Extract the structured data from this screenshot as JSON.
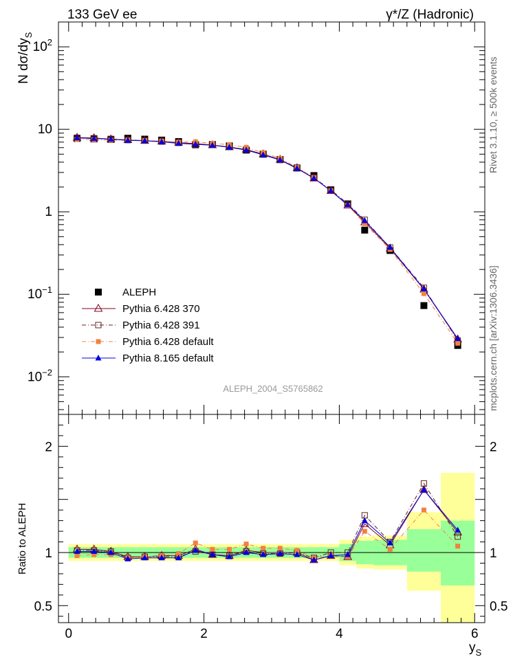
{
  "header": {
    "left_label": "133 GeV ee",
    "right_label": "γ*/Z (Hadronic)"
  },
  "side_text": {
    "rivet": "Rivet 3.1.10, ≥ 500k events",
    "mcplots": "mcplots.cern.ch [arXiv:1306.3436]"
  },
  "watermark": "ALEPH_2004_S5765862",
  "chart_data": [
    {
      "type": "line",
      "panel": "main",
      "y_scale": "log",
      "ylabel": "N dσ/dy_S",
      "ylabel_main": "N dσ/dy",
      "ylabel_sub": "S",
      "xlabel": "y_S",
      "xlabel_main": "y",
      "xlabel_sub": "S",
      "xlim": [
        -0.15,
        6.15
      ],
      "ylim": [
        0.0035,
        200
      ],
      "yticks": [
        {
          "value": 0.01,
          "base": "10",
          "exp": "−2"
        },
        {
          "value": 0.1,
          "base": "10",
          "exp": "−1"
        },
        {
          "value": 1,
          "base": "1",
          "exp": ""
        },
        {
          "value": 10,
          "base": "10",
          "exp": ""
        },
        {
          "value": 100,
          "base": "10",
          "exp": "2"
        }
      ],
      "x": [
        0.125,
        0.375,
        0.625,
        0.875,
        1.125,
        1.375,
        1.625,
        1.875,
        2.125,
        2.375,
        2.625,
        2.875,
        3.125,
        3.375,
        3.625,
        3.875,
        4.125,
        4.375,
        4.75,
        5.25,
        5.75
      ],
      "series": [
        {
          "name": "ALEPH",
          "color": "#000000",
          "marker": "filled-square",
          "line": "none",
          "values": [
            7.75,
            7.65,
            7.55,
            7.8,
            7.6,
            7.4,
            7.1,
            6.5,
            6.55,
            6.3,
            5.6,
            5.0,
            4.3,
            3.4,
            2.75,
            1.85,
            1.25,
            0.6,
            0.34,
            0.073,
            0.024
          ]
        },
        {
          "name": "Pythia 6.428 370",
          "color": "#800020",
          "marker": "open-triangle",
          "line": "solid",
          "values": [
            7.95,
            7.85,
            7.6,
            7.45,
            7.3,
            7.15,
            6.9,
            6.7,
            6.45,
            6.1,
            5.7,
            5.0,
            4.3,
            3.4,
            2.55,
            1.8,
            1.2,
            0.75,
            0.36,
            0.115,
            0.0285
          ]
        },
        {
          "name": "Pythia 6.428 391",
          "color": "#602020",
          "marker": "open-square",
          "line": "dashdot",
          "values": [
            7.9,
            7.8,
            7.65,
            7.4,
            7.3,
            7.1,
            6.85,
            6.55,
            6.45,
            6.1,
            5.65,
            4.95,
            4.25,
            3.4,
            2.6,
            1.85,
            1.25,
            0.8,
            0.37,
            0.12,
            0.0275
          ]
        },
        {
          "name": "Pythia 6.428 default",
          "color": "#f28040",
          "marker": "filled-square-small",
          "line": "dashdot",
          "values": [
            7.5,
            7.5,
            7.4,
            7.4,
            7.3,
            7.2,
            7.0,
            7.05,
            6.75,
            6.5,
            6.05,
            5.2,
            4.45,
            3.45,
            2.6,
            1.8,
            1.2,
            0.72,
            0.35,
            0.102,
            0.0255
          ]
        },
        {
          "name": "Pythia 8.165 default",
          "color": "#0000e0",
          "marker": "filled-triangle",
          "line": "solid",
          "values": [
            7.85,
            7.75,
            7.6,
            7.35,
            7.25,
            7.05,
            6.75,
            6.6,
            6.4,
            6.05,
            5.6,
            4.9,
            4.25,
            3.35,
            2.55,
            1.8,
            1.22,
            0.78,
            0.37,
            0.116,
            0.029
          ]
        }
      ],
      "legend": {
        "placement": "lower-left"
      }
    },
    {
      "type": "line",
      "panel": "ratio",
      "ylabel": "Ratio to ALEPH",
      "xlim": [
        -0.15,
        6.15
      ],
      "ylim": [
        0.34,
        2.3
      ],
      "yticks": [
        0.5,
        1,
        2
      ],
      "xticks": [
        0,
        2,
        4,
        6
      ],
      "bins": [
        [
          0.0,
          0.25
        ],
        [
          0.25,
          0.5
        ],
        [
          0.5,
          0.75
        ],
        [
          0.75,
          1.0
        ],
        [
          1.0,
          1.25
        ],
        [
          1.25,
          1.5
        ],
        [
          1.5,
          1.75
        ],
        [
          1.75,
          2.0
        ],
        [
          2.0,
          2.25
        ],
        [
          2.25,
          2.5
        ],
        [
          2.5,
          2.75
        ],
        [
          2.75,
          3.0
        ],
        [
          3.0,
          3.25
        ],
        [
          3.25,
          3.5
        ],
        [
          3.5,
          3.75
        ],
        [
          3.75,
          4.0
        ],
        [
          4.0,
          4.25
        ],
        [
          4.25,
          4.5
        ],
        [
          4.5,
          5.0
        ],
        [
          5.0,
          5.5
        ],
        [
          5.5,
          6.0
        ]
      ],
      "band_stat": [
        [
          0.95,
          1.05
        ],
        [
          0.95,
          1.05
        ],
        [
          0.95,
          1.05
        ],
        [
          0.95,
          1.05
        ],
        [
          0.95,
          1.05
        ],
        [
          0.95,
          1.05
        ],
        [
          0.95,
          1.05
        ],
        [
          0.95,
          1.05
        ],
        [
          0.95,
          1.05
        ],
        [
          0.95,
          1.05
        ],
        [
          0.95,
          1.05
        ],
        [
          0.95,
          1.05
        ],
        [
          0.95,
          1.05
        ],
        [
          0.95,
          1.05
        ],
        [
          0.95,
          1.05
        ],
        [
          0.95,
          1.05
        ],
        [
          0.92,
          1.08
        ],
        [
          0.89,
          1.11
        ],
        [
          0.88,
          1.12
        ],
        [
          0.82,
          1.22
        ],
        [
          0.69,
          1.3
        ]
      ],
      "band_total": [
        [
          0.92,
          1.08
        ],
        [
          0.92,
          1.08
        ],
        [
          0.92,
          1.08
        ],
        [
          0.92,
          1.08
        ],
        [
          0.92,
          1.08
        ],
        [
          0.92,
          1.08
        ],
        [
          0.92,
          1.08
        ],
        [
          0.92,
          1.08
        ],
        [
          0.92,
          1.08
        ],
        [
          0.92,
          1.08
        ],
        [
          0.92,
          1.08
        ],
        [
          0.92,
          1.08
        ],
        [
          0.92,
          1.08
        ],
        [
          0.92,
          1.08
        ],
        [
          0.92,
          1.08
        ],
        [
          0.92,
          1.08
        ],
        [
          0.88,
          1.12
        ],
        [
          0.85,
          1.15
        ],
        [
          0.84,
          1.16
        ],
        [
          0.64,
          1.38
        ],
        [
          0.34,
          1.75
        ]
      ],
      "series": [
        {
          "name": "Pythia 6.428 370",
          "values": [
            1.03,
            1.03,
            1.01,
            0.96,
            0.96,
            0.97,
            0.97,
            1.03,
            0.98,
            0.97,
            1.02,
            1.0,
            1.0,
            1.0,
            0.93,
            0.97,
            0.96,
            1.27,
            1.07,
            1.59,
            1.19
          ]
        },
        {
          "name": "Pythia 6.428 391",
          "values": [
            1.02,
            1.02,
            1.01,
            0.95,
            0.96,
            0.96,
            0.96,
            1.01,
            0.98,
            0.97,
            1.01,
            0.99,
            0.99,
            1.0,
            0.95,
            1.0,
            1.0,
            1.35,
            1.1,
            1.65,
            1.15
          ]
        },
        {
          "name": "Pythia 6.428 default",
          "values": [
            0.97,
            0.98,
            0.98,
            0.95,
            0.96,
            0.97,
            0.99,
            1.09,
            1.03,
            1.03,
            1.08,
            1.04,
            1.04,
            1.02,
            0.95,
            0.97,
            0.96,
            1.2,
            1.03,
            1.4,
            1.06
          ]
        },
        {
          "name": "Pythia 8.165 default",
          "values": [
            1.01,
            1.01,
            1.0,
            0.94,
            0.95,
            0.95,
            0.95,
            1.02,
            0.98,
            0.96,
            1.0,
            0.98,
            0.99,
            0.98,
            0.93,
            0.97,
            0.98,
            1.3,
            1.09,
            1.59,
            1.21
          ]
        }
      ]
    }
  ]
}
